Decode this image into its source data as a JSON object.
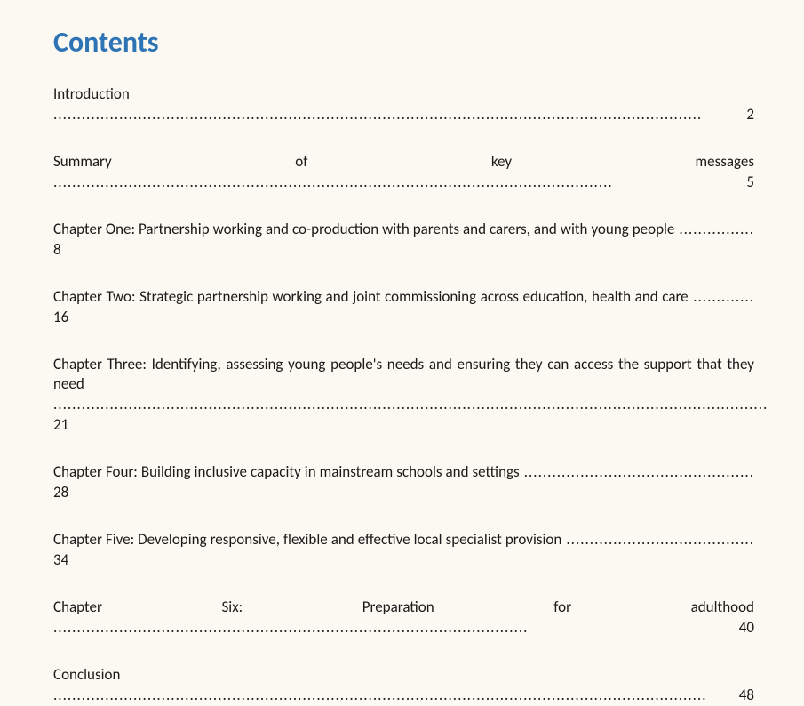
{
  "heading": "Contents",
  "heading_color": "#2e74b5",
  "background_color": "#fbf9f2",
  "text_color": "#1a1a1a",
  "font_family": "Calibri",
  "heading_fontsize": 32,
  "entry_fontsize": 17,
  "entries": [
    {
      "title": "Introduction",
      "page": "2"
    },
    {
      "title": "Summary of key messages",
      "page": "5"
    },
    {
      "title": "Chapter One: Partnership working and co-production with parents and carers, and with young people",
      "page": "8"
    },
    {
      "title": "Chapter Two: Strategic partnership working and joint commissioning across education, health and care",
      "page": "16"
    },
    {
      "title": "Chapter Three: Identifying, assessing young people's needs and ensuring they can access the support that they need",
      "page": "21"
    },
    {
      "title": "Chapter Four: Building inclusive capacity in mainstream schools and settings",
      "page": "28"
    },
    {
      "title": "Chapter Five: Developing responsive, flexible and effective local specialist provision",
      "page": "34"
    },
    {
      "title": "Chapter Six: Preparation for adulthood",
      "page": "40"
    },
    {
      "title": "Conclusion",
      "page": "48"
    }
  ]
}
